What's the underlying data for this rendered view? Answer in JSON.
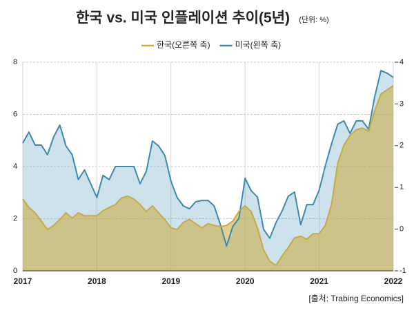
{
  "chart_data": {
    "type": "line",
    "title": "한국 vs. 미국 인플레이션 추이(5년)",
    "subtitle": "(단위: %)",
    "source": "[출처: Trabing Economics]",
    "x": [
      2017,
      2017.083,
      2017.167,
      2017.25,
      2017.333,
      2017.417,
      2017.5,
      2017.583,
      2017.667,
      2017.75,
      2017.833,
      2017.917,
      2018,
      2018.083,
      2018.167,
      2018.25,
      2018.333,
      2018.417,
      2018.5,
      2018.583,
      2018.667,
      2018.75,
      2018.833,
      2018.917,
      2019,
      2019.083,
      2019.167,
      2019.25,
      2019.333,
      2019.417,
      2019.5,
      2019.583,
      2019.667,
      2019.75,
      2019.833,
      2019.917,
      2020,
      2020.083,
      2020.167,
      2020.25,
      2020.333,
      2020.417,
      2020.5,
      2020.583,
      2020.667,
      2020.75,
      2020.833,
      2020.917,
      2021,
      2021.083,
      2021.167,
      2021.25,
      2021.333,
      2021.417,
      2021.5,
      2021.583,
      2021.667,
      2021.75,
      2021.833,
      2021.917,
      2022
    ],
    "series": [
      {
        "name": "한국(오른쪽 축)",
        "color": "#c9a93a",
        "axis": "y2",
        "values": [
          0.72,
          0.52,
          0.39,
          0.19,
          -0.01,
          0.09,
          0.23,
          0.39,
          0.26,
          0.39,
          0.32,
          0.32,
          0.32,
          0.44,
          0.52,
          0.59,
          0.75,
          0.79,
          0.72,
          0.59,
          0.42,
          0.56,
          0.39,
          0.23,
          0.03,
          -0.01,
          0.16,
          0.23,
          0.13,
          0.03,
          0.13,
          0.09,
          0.06,
          0.09,
          0.19,
          0.42,
          0.56,
          0.42,
          0.03,
          -0.5,
          -0.77,
          -0.87,
          -0.64,
          -0.44,
          -0.21,
          -0.17,
          -0.24,
          -0.11,
          -0.11,
          0.09,
          0.59,
          1.58,
          2.01,
          2.25,
          2.38,
          2.42,
          2.35,
          2.84,
          3.24,
          3.34,
          3.44
        ]
      },
      {
        "name": "미국(왼쪽 축)",
        "color": "#3a8ab0",
        "values": [
          4.9,
          5.32,
          4.82,
          4.82,
          4.45,
          5.14,
          5.59,
          4.79,
          4.45,
          3.5,
          3.87,
          3.34,
          2.81,
          3.66,
          3.5,
          4.0,
          4.0,
          4.0,
          4.0,
          3.34,
          3.81,
          4.98,
          4.79,
          4.42,
          3.44,
          2.81,
          2.49,
          2.38,
          2.65,
          2.7,
          2.7,
          2.49,
          1.77,
          0.95,
          1.7,
          2.01,
          3.55,
          3.07,
          2.83,
          1.59,
          1.25,
          1.85,
          2.3,
          2.86,
          3.02,
          1.77,
          2.54,
          2.54,
          3.1,
          4.03,
          4.87,
          5.62,
          5.75,
          5.27,
          5.75,
          5.75,
          5.43,
          6.68,
          7.68,
          7.58,
          7.42
        ]
      }
    ],
    "xlim": [
      2017,
      2022
    ],
    "xticks": [
      2017,
      2018,
      2019,
      2020,
      2021,
      2022
    ],
    "ylim": [
      0,
      8
    ],
    "yticks": [
      0,
      2,
      4,
      6,
      8
    ],
    "y2lim": [
      -1,
      4
    ],
    "y2ticks": [
      -1,
      0,
      1,
      2,
      3,
      4
    ],
    "grid": true
  }
}
